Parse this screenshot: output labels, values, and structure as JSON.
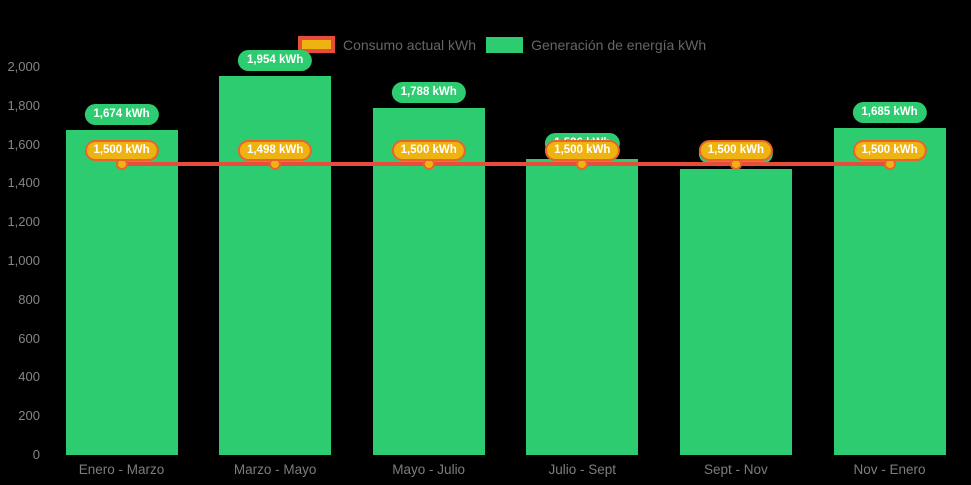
{
  "colors": {
    "background": "#000000",
    "bar_green": "#2ecc71",
    "line_red": "#e74c3c",
    "marker_gold": "#eeb211",
    "marker_border_orange": "#e8642c",
    "axis_text": "#858585",
    "legend_text": "#666666",
    "label_text": "#ffffff"
  },
  "chart_data": {
    "type": "bar",
    "title": "",
    "xlabel": "",
    "ylabel": "",
    "categories": [
      "Enero - Marzo",
      "Marzo - Mayo",
      "Mayo - Julio",
      "Julio - Sept",
      "Sept - Nov",
      "Nov - Enero"
    ],
    "ylim": [
      0,
      2000
    ],
    "y_tick_step": 200,
    "y_ticks": [
      "0",
      "200",
      "400",
      "600",
      "800",
      "1,000",
      "1,200",
      "1,400",
      "1,600",
      "1,800",
      "2,000"
    ],
    "grid": false,
    "legend_position": "top",
    "series": [
      {
        "name": "Generación de energía kWh",
        "type": "bar",
        "color": "#2ecc71",
        "values": [
          1674,
          1954,
          1788,
          1526,
          1474,
          1685
        ],
        "labels": [
          "1,674 kWh",
          "1,954 kWh",
          "1,788 kWh",
          "1,526 kWh",
          "1,474 kWh",
          "1,685 kWh"
        ],
        "labels_occluded": [
          false,
          false,
          false,
          true,
          true,
          false
        ]
      },
      {
        "name": "Consumo actual kWh",
        "type": "line",
        "color": "#e74c3c",
        "marker_color": "#eeb211",
        "values": [
          1500,
          1498,
          1500,
          1500,
          1500,
          1500
        ],
        "labels": [
          "1,500 kWh",
          "1,498 kWh",
          "1,500 kWh",
          "1,500 kWh",
          "1,500 kWh",
          "1,500 kWh"
        ]
      }
    ]
  }
}
